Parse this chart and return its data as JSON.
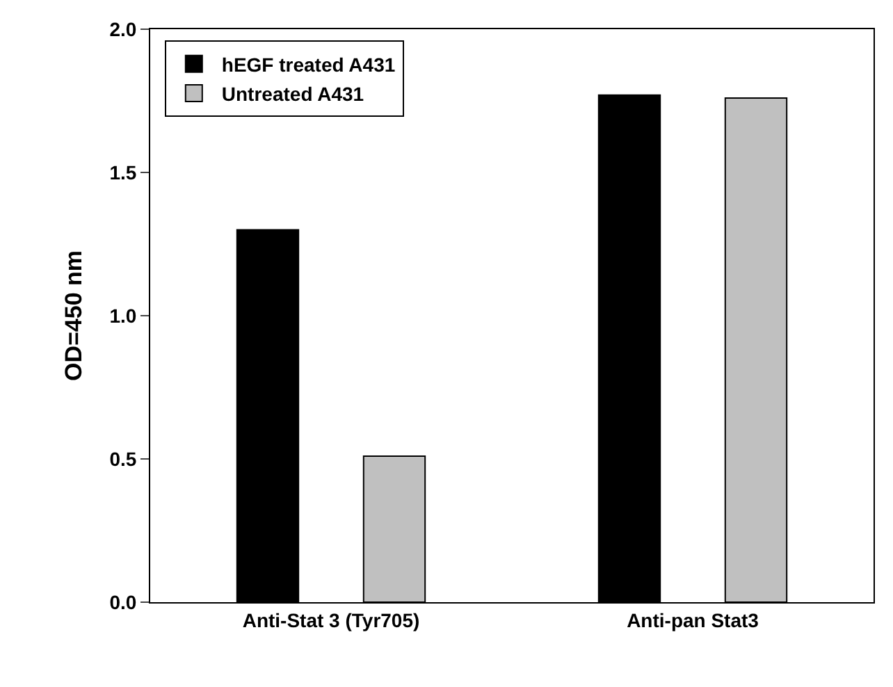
{
  "chart_data": {
    "type": "bar",
    "ylabel": "OD=450 nm",
    "categories": [
      "Anti-Stat 3 (Tyr705)",
      "Anti-pan Stat3"
    ],
    "series": [
      {
        "name": "hEGF treated A431",
        "color": "#000000",
        "values": [
          1.3,
          1.77
        ]
      },
      {
        "name": "Untreated A431",
        "color": "#c0c0c0",
        "values": [
          0.51,
          1.76
        ]
      }
    ],
    "ylim": [
      0,
      2.0
    ],
    "yticks": [
      {
        "value": 0,
        "label": "0.0"
      },
      {
        "value": 0.5,
        "label": "0.5"
      },
      {
        "value": 1.0,
        "label": "1.0"
      },
      {
        "value": 1.5,
        "label": "1.5"
      },
      {
        "value": 2.0,
        "label": "2.0"
      }
    ],
    "legend": "top left"
  }
}
